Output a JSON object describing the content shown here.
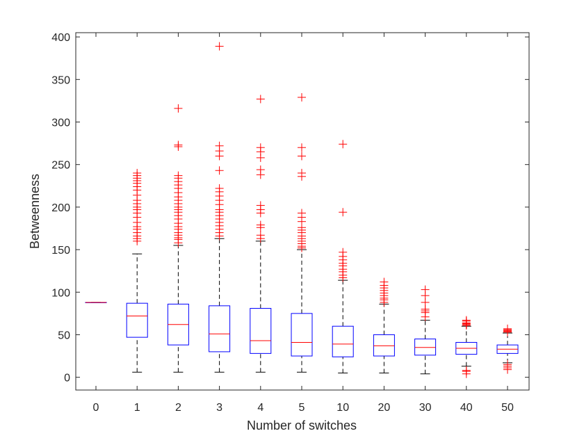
{
  "chart_data": {
    "type": "boxplot",
    "title": "",
    "xlabel": "Number of switches",
    "ylabel": "Betweenness",
    "ylim": [
      -15,
      405
    ],
    "yticks": [
      0,
      50,
      100,
      150,
      200,
      250,
      300,
      350,
      400
    ],
    "categories": [
      "0",
      "1",
      "2",
      "3",
      "4",
      "5",
      "10",
      "20",
      "30",
      "40",
      "50"
    ],
    "boxes": [
      {
        "category": "0",
        "min": 88,
        "q1": 88,
        "median": 88,
        "q3": 88,
        "max": 88,
        "outliers": []
      },
      {
        "category": "1",
        "min": 6,
        "q1": 47,
        "median": 72,
        "q3": 87,
        "max": 145,
        "outliers": [
          160,
          163,
          166,
          170,
          174,
          177,
          182,
          188,
          193,
          197,
          200,
          204,
          208,
          214,
          220,
          224,
          228,
          231,
          234,
          237,
          240
        ]
      },
      {
        "category": "2",
        "min": 6,
        "q1": 38,
        "median": 62,
        "q3": 86,
        "max": 155,
        "outliers": [
          158,
          162,
          164,
          167,
          170,
          174,
          177,
          181,
          186,
          190,
          194,
          197,
          200,
          204,
          208,
          212,
          217,
          222,
          226,
          230,
          234,
          237,
          271,
          273,
          316
        ]
      },
      {
        "category": "3",
        "min": 6,
        "q1": 30,
        "median": 51,
        "q3": 84,
        "max": 163,
        "outliers": [
          166,
          170,
          174,
          178,
          182,
          186,
          190,
          194,
          197,
          203,
          208,
          213,
          218,
          222,
          243,
          260,
          266,
          272,
          389
        ]
      },
      {
        "category": "4",
        "min": 6,
        "q1": 28,
        "median": 43,
        "q3": 81,
        "max": 160,
        "outliers": [
          163,
          167,
          176,
          179,
          193,
          197,
          202,
          238,
          244,
          258,
          265,
          270,
          327
        ]
      },
      {
        "category": "5",
        "min": 6,
        "q1": 25,
        "median": 41,
        "q3": 75,
        "max": 150,
        "outliers": [
          152,
          154,
          157,
          160,
          163,
          166,
          170,
          173,
          176,
          183,
          188,
          193,
          236,
          240,
          260,
          270,
          329
        ]
      },
      {
        "category": "10",
        "min": 5,
        "q1": 24,
        "median": 39,
        "q3": 60,
        "max": 114,
        "outliers": [
          117,
          120,
          124,
          127,
          131,
          134,
          138,
          142,
          147,
          194,
          274
        ]
      },
      {
        "category": "20",
        "min": 5,
        "q1": 25,
        "median": 37,
        "q3": 50,
        "max": 86,
        "outliers": [
          88,
          91,
          93,
          96,
          99,
          102,
          105,
          108,
          112
        ]
      },
      {
        "category": "30",
        "min": 4,
        "q1": 26,
        "median": 35,
        "q3": 45,
        "max": 67,
        "outliers": [
          71,
          76,
          78,
          80,
          88,
          96,
          103
        ]
      },
      {
        "category": "40",
        "min": 13,
        "q1": 27,
        "median": 34,
        "q3": 41,
        "max": 60,
        "outliers": [
          61,
          62,
          63,
          64,
          66,
          67,
          4,
          7,
          8
        ]
      },
      {
        "category": "50",
        "min": 17,
        "q1": 28,
        "median": 33,
        "q3": 38,
        "max": 52,
        "outliers": [
          53,
          54,
          55,
          56,
          57,
          9,
          11,
          13,
          15
        ]
      }
    ],
    "colors": {
      "box": "#0000ff",
      "median": "#ff0000",
      "outlier": "#ff0000",
      "whisker": "#000000",
      "axes": "#262626"
    }
  }
}
